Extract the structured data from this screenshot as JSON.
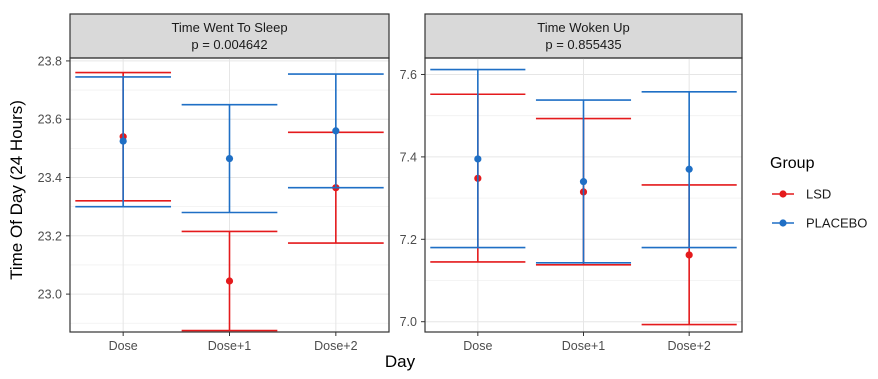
{
  "chart_data": {
    "type": "errorbar",
    "ylabel": "Time Of Day (24 Hours)",
    "xlabel": "Day",
    "legend": {
      "title": "Group",
      "position": "right",
      "items": [
        {
          "name": "LSD",
          "color": "#e41a1c"
        },
        {
          "name": "PLACEBO",
          "color": "#1f6fc5"
        }
      ]
    },
    "categories": [
      "Dose",
      "Dose+1",
      "Dose+2"
    ],
    "grid": true,
    "panels": [
      {
        "title": "Time Went To Sleep",
        "subtitle": "p = 0.004642",
        "ylim": [
          22.87,
          23.81
        ],
        "yticks": [
          "23.0",
          "23.2",
          "23.4",
          "23.6",
          "23.8"
        ],
        "series": [
          {
            "name": "LSD",
            "color": "#e41a1c",
            "mean": [
              23.54,
              23.045,
              23.365
            ],
            "lower": [
              23.32,
              22.875,
              23.175
            ],
            "upper": [
              23.76,
              23.215,
              23.555
            ]
          },
          {
            "name": "PLACEBO",
            "color": "#1f6fc5",
            "mean": [
              23.525,
              23.465,
              23.56
            ],
            "lower": [
              23.3,
              23.28,
              23.365
            ],
            "upper": [
              23.745,
              23.65,
              23.755
            ]
          }
        ]
      },
      {
        "title": "Time Woken Up",
        "subtitle": "p = 0.855435",
        "ylim": [
          6.975,
          7.64
        ],
        "yticks": [
          "7.0",
          "7.2",
          "7.4",
          "7.6"
        ],
        "series": [
          {
            "name": "LSD",
            "color": "#e41a1c",
            "mean": [
              7.348,
              7.315,
              7.162
            ],
            "lower": [
              7.145,
              7.138,
              6.993
            ],
            "upper": [
              7.552,
              7.493,
              7.332
            ]
          },
          {
            "name": "PLACEBO",
            "color": "#1f6fc5",
            "mean": [
              7.395,
              7.34,
              7.37
            ],
            "lower": [
              7.18,
              7.143,
              7.18
            ],
            "upper": [
              7.612,
              7.538,
              7.558
            ]
          }
        ]
      }
    ]
  }
}
